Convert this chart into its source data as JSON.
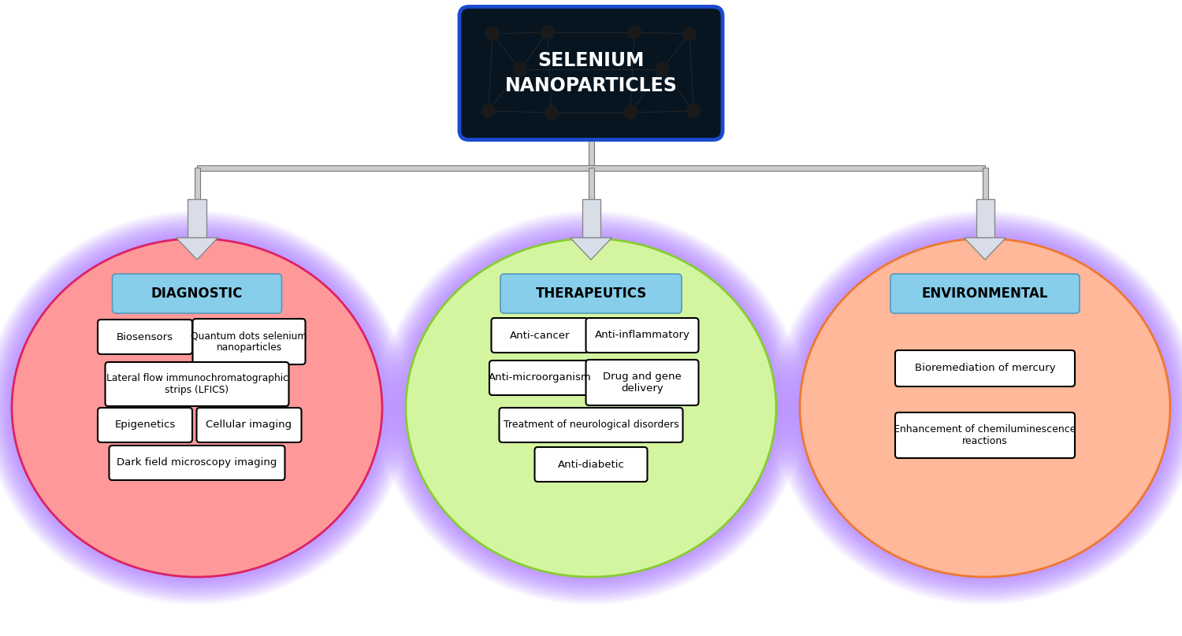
{
  "title": "SELENIUM\nNANOPARTICLES",
  "title_bg": "#071520",
  "title_border": "#1a4acc",
  "title_text_color": "white",
  "left_label": "DIAGNOSTIC",
  "left_label_bg": "#87ceeb",
  "left_ellipse_inner": "#ff9999",
  "left_ellipse_outer": "#b388ff",
  "center_label": "THERAPEUTICS",
  "center_label_bg": "#87ceeb",
  "center_ellipse_inner": "#d4f5a0",
  "center_ellipse_outer": "#b388ff",
  "right_label": "ENVIRONMENTAL",
  "right_label_bg": "#87ceeb",
  "right_ellipse_inner": "#ffb899",
  "right_ellipse_outer": "#b388ff",
  "line_color": "#888888",
  "arrow_fill": "#d8dde8",
  "arrow_edge": "#888888"
}
